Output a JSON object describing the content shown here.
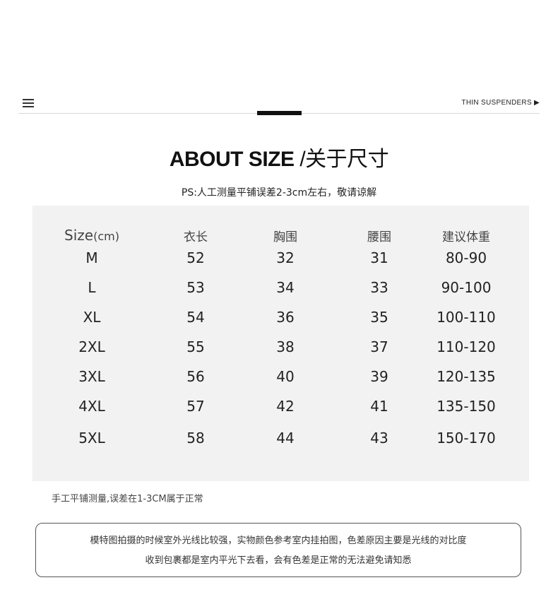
{
  "header": {
    "nav_label": "THIN SUSPENDERS ▶"
  },
  "title": {
    "en": "ABOUT SIZE",
    "sep": "/",
    "cn": "关于尺寸"
  },
  "ps": "PS:人工测量平铺误差2-3cm左右，敬请谅解",
  "table": {
    "headers": [
      "Size",
      "(cm)",
      "衣长",
      "胸围",
      "腰围",
      "建议体重"
    ],
    "rows": [
      [
        "M",
        "52",
        "32",
        "31",
        "80-90"
      ],
      [
        "L",
        "53",
        "34",
        "33",
        "90-100"
      ],
      [
        "XL",
        "54",
        "36",
        "35",
        "100-110"
      ],
      [
        "2XL",
        "55",
        "38",
        "37",
        "110-120"
      ],
      [
        "3XL",
        "56",
        "40",
        "39",
        "120-135"
      ],
      [
        "4XL",
        "57",
        "42",
        "41",
        "135-150"
      ],
      [
        "5XL",
        "58",
        "44",
        "43",
        "150-170"
      ]
    ]
  },
  "note": "手工平铺测量,误差在1-3CM属于正常",
  "notice": {
    "line1": "模特图拍摄的时候室外光线比较强，实物颜色参考室内挂拍图，色差原因主要是光线的对比度",
    "line2": "收到包裹都是室内平光下去看，会有色差是正常的无法避免请知悉"
  }
}
